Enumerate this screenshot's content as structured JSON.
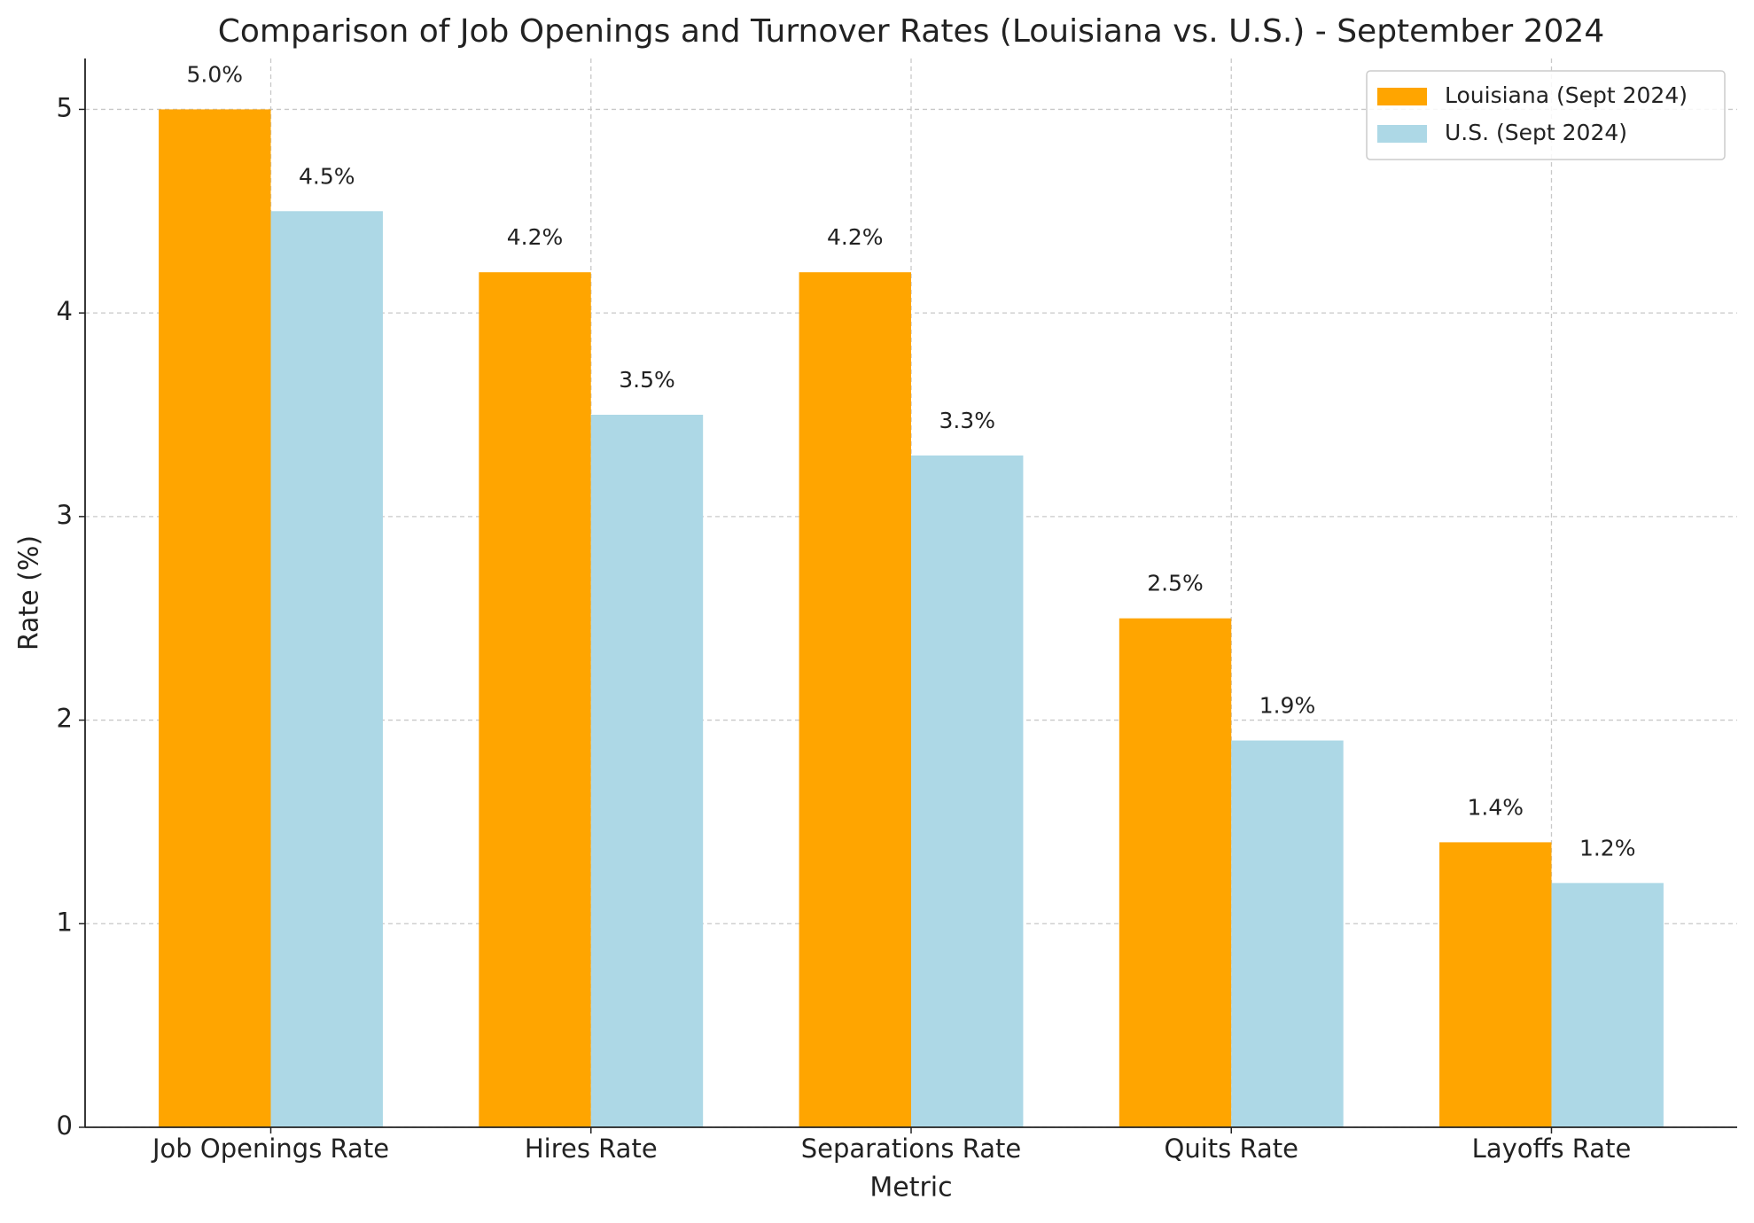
{
  "chart_data": {
    "type": "bar",
    "title": "Comparison of Job Openings and Turnover Rates (Louisiana vs. U.S.) - September 2024",
    "xlabel": "Metric",
    "ylabel": "Rate (%)",
    "categories": [
      "Job Openings Rate",
      "Hires Rate",
      "Separations Rate",
      "Quits Rate",
      "Layoffs Rate"
    ],
    "series": [
      {
        "name": "Louisiana (Sept 2024)",
        "color": "#ffa500",
        "values": [
          5.0,
          4.2,
          4.2,
          2.5,
          1.4
        ],
        "value_labels": [
          "5.0%",
          "4.2%",
          "4.2%",
          "2.5%",
          "1.4%"
        ]
      },
      {
        "name": "U.S. (Sept 2024)",
        "color": "#add8e6",
        "values": [
          4.5,
          3.5,
          3.3,
          1.9,
          1.2
        ],
        "value_labels": [
          "4.5%",
          "3.5%",
          "3.3%",
          "1.9%",
          "1.2%"
        ]
      }
    ],
    "ylim": [
      0,
      5.25
    ],
    "yticks": [
      0,
      1,
      2,
      3,
      4,
      5
    ],
    "grid": true,
    "legend": "upper right"
  }
}
